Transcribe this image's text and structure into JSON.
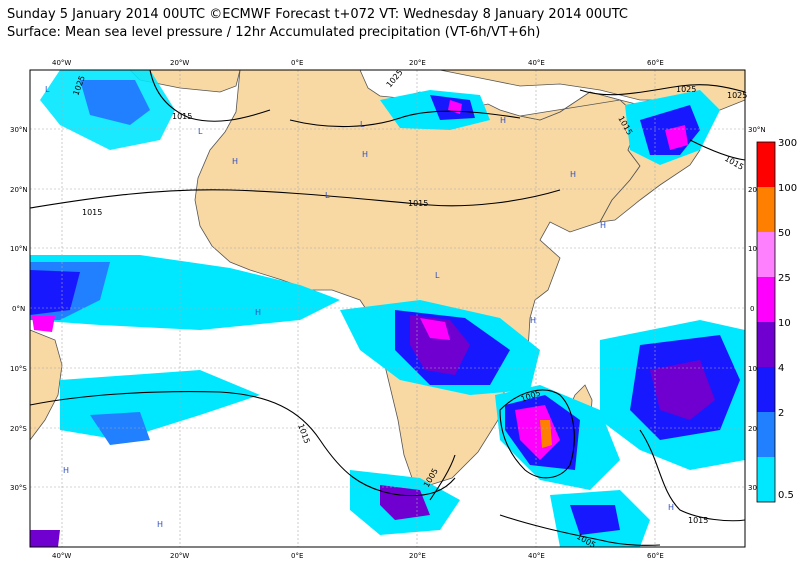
{
  "title": {
    "line1": "Sunday 5 January 2014 00UTC ©ECMWF Forecast t+072 VT: Wednesday 8 January 2014 00UTC",
    "line2": "Surface: Mean sea level pressure / 12hr Accumulated precipitation (VT-6h/VT+6h)"
  },
  "axes": {
    "longitude_ticks_top": [
      "40°W",
      "20°W",
      "0°E",
      "20°E",
      "40°E",
      "60°E"
    ],
    "longitude_ticks_bottom": [
      "40°W",
      "20°W",
      "0°E",
      "20°E",
      "40°E",
      "60°E"
    ],
    "latitude_ticks_left": [
      "30°N",
      "20°N",
      "10°N",
      "0°N",
      "10°S",
      "20°S",
      "30°S"
    ],
    "latitude_ticks_right": [
      "30°N",
      "20",
      "10",
      "0",
      "10",
      "20",
      "30"
    ]
  },
  "isobar_labels": [
    "1025",
    "1015",
    "1015",
    "1015",
    "1025",
    "1025",
    "1015",
    "1015",
    "1005",
    "1005",
    "1015",
    "1005",
    "1015",
    "1025"
  ],
  "pressure_centers": [
    "L",
    "L",
    "L",
    "L",
    "L",
    "H",
    "H",
    "H",
    "H",
    "H",
    "H",
    "H",
    "H",
    "H",
    "H"
  ],
  "legend": {
    "levels": [
      "300",
      "100",
      "50",
      "25",
      "10",
      "4",
      "2",
      "0.5"
    ],
    "colors": [
      "#ff0000",
      "#ff8000",
      "#ff80ff",
      "#ff00ff",
      "#7000d0",
      "#1818ff",
      "#2080ff",
      "#00e8ff"
    ]
  },
  "map_colors": {
    "ocean": "#ffffff",
    "land": "#f8d9a4",
    "light_precip": "#00e8ff",
    "moderate_precip": "#2080ff",
    "heavy_precip": "#1818ff",
    "very_heavy_precip": "#7000d0",
    "extreme_precip": "#ff00ff",
    "isobar": "#000000",
    "graticule": "#aaaaaa"
  }
}
